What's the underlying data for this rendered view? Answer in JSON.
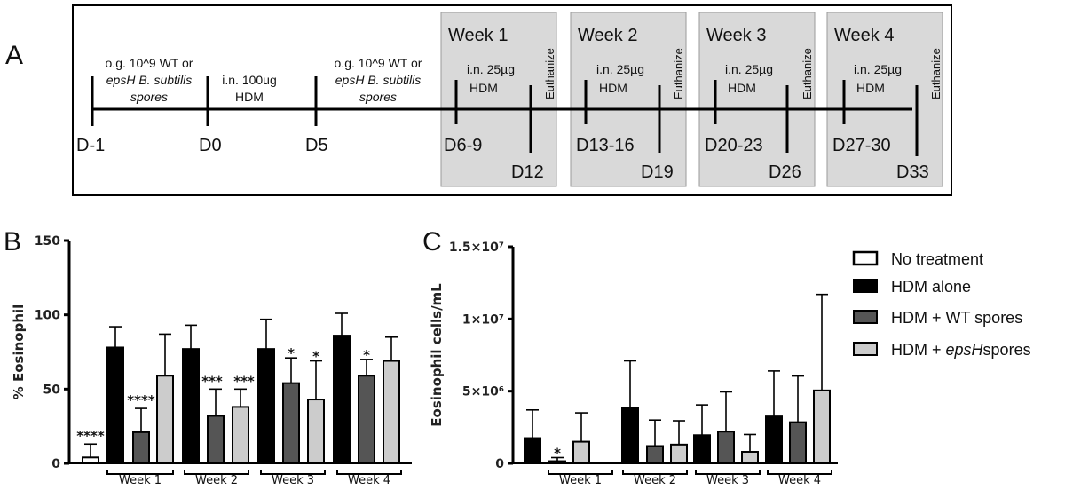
{
  "panel_labels": {
    "a": "A",
    "b": "B",
    "c": "C"
  },
  "timeline": {
    "pre": [
      {
        "line1": "o.g. 10^9 WT or",
        "line2": "epsH B. subtilis",
        "line3": "spores"
      },
      {
        "line1": "i.n. 100ug",
        "line2": "HDM"
      },
      {
        "line1": "o.g. 10^9 WT or",
        "line2": "epsH B. subtilis",
        "line3": "spores"
      }
    ],
    "days": {
      "dm1": "D-1",
      "d0": "D0",
      "d5": "D5"
    },
    "weeks": [
      {
        "title": "Week 1",
        "dose": "i.n. 25µg",
        "agent": "HDM",
        "euth": "Euthanize",
        "range": "D6-9",
        "end": "D12"
      },
      {
        "title": "Week 2",
        "dose": "i.n. 25µg",
        "agent": "HDM",
        "euth": "Euthanize",
        "range": "D13-16",
        "end": "D19"
      },
      {
        "title": "Week 3",
        "dose": "i.n. 25µg",
        "agent": "HDM",
        "euth": "Euthanize",
        "range": "D20-23",
        "end": "D26"
      },
      {
        "title": "Week 4",
        "dose": "i.n. 25µg",
        "agent": "HDM",
        "euth": "Euthanize",
        "range": "D27-30",
        "end": "D33"
      }
    ]
  },
  "legend": {
    "items": [
      {
        "label": "No treatment",
        "color": "#ffffff"
      },
      {
        "label": "HDM alone",
        "color": "#000000"
      },
      {
        "label": "HDM + WT spores",
        "color": "#555555"
      },
      {
        "label_prefix": "HDM + ",
        "label_italic": "epsH",
        "label_suffix": "spores",
        "color": "#cccccc"
      }
    ]
  },
  "chart_data": [
    {
      "type": "bar",
      "panel": "B",
      "ylabel": "% Eosinophil",
      "ylim": [
        0,
        150
      ],
      "yticks": [
        "0",
        "50",
        "100",
        "150"
      ],
      "groups": [
        "Week 1",
        "Week 2",
        "Week 3",
        "Week 4"
      ],
      "bars": [
        {
          "series": "No treatment",
          "value": 4,
          "err": 9,
          "sig": "****",
          "color": "#ffffff"
        },
        {
          "series": "HDM alone",
          "group": "Week 1",
          "value": 78,
          "err": 14,
          "sig": "",
          "color": "#000000"
        },
        {
          "series": "HDM + WT spores",
          "group": "Week 1",
          "value": 21,
          "err": 16,
          "sig": "****",
          "color": "#555555"
        },
        {
          "series": "HDM + epsH spores",
          "group": "Week 1",
          "value": 59,
          "err": 28,
          "sig": "",
          "color": "#cccccc"
        },
        {
          "series": "HDM alone",
          "group": "Week 2",
          "value": 77,
          "err": 16,
          "sig": "",
          "color": "#000000"
        },
        {
          "series": "HDM + WT spores",
          "group": "Week 2",
          "value": 32,
          "err": 18,
          "sig": "***",
          "color": "#555555"
        },
        {
          "series": "HDM + epsH spores",
          "group": "Week 2",
          "value": 38,
          "err": 12,
          "sig": "***",
          "color": "#cccccc"
        },
        {
          "series": "HDM alone",
          "group": "Week 3",
          "value": 77,
          "err": 20,
          "sig": "",
          "color": "#000000"
        },
        {
          "series": "HDM + WT spores",
          "group": "Week 3",
          "value": 54,
          "err": 17,
          "sig": "*",
          "color": "#555555"
        },
        {
          "series": "HDM + epsH spores",
          "group": "Week 3",
          "value": 43,
          "err": 26,
          "sig": "*",
          "color": "#cccccc"
        },
        {
          "series": "HDM alone",
          "group": "Week 4",
          "value": 86,
          "err": 15,
          "sig": "",
          "color": "#000000"
        },
        {
          "series": "HDM + WT spores",
          "group": "Week 4",
          "value": 59,
          "err": 11,
          "sig": "*",
          "color": "#555555"
        },
        {
          "series": "HDM + epsH spores",
          "group": "Week 4",
          "value": 69,
          "err": 16,
          "sig": "",
          "color": "#cccccc"
        }
      ]
    },
    {
      "type": "bar",
      "panel": "C",
      "ylabel": "Eosinophil cells/mL",
      "ylim": [
        0,
        15000000
      ],
      "yticks": [
        "0",
        "5×10⁶",
        "1×10⁷",
        "1.5×10⁷"
      ],
      "groups": [
        "Week 1",
        "Week 2",
        "Week 3",
        "Week 4"
      ],
      "bars": [
        {
          "series": "HDM alone",
          "group": "Week 1",
          "value": 1750000,
          "err": 1950000,
          "sig": "",
          "color": "#000000"
        },
        {
          "series": "HDM + WT spores",
          "group": "Week 1",
          "value": 150000,
          "err": 250000,
          "sig": "*",
          "color": "#555555"
        },
        {
          "series": "HDM + epsH spores",
          "group": "Week 1",
          "value": 1500000,
          "err": 2000000,
          "sig": "",
          "color": "#cccccc"
        },
        {
          "series": "HDM alone",
          "group": "Week 2",
          "value": 3850000,
          "err": 3250000,
          "sig": "",
          "color": "#000000"
        },
        {
          "series": "HDM + WT spores",
          "group": "Week 2",
          "value": 1200000,
          "err": 1800000,
          "sig": "",
          "color": "#555555"
        },
        {
          "series": "HDM + epsH spores",
          "group": "Week 2",
          "value": 1300000,
          "err": 1650000,
          "sig": "",
          "color": "#cccccc"
        },
        {
          "series": "HDM alone",
          "group": "Week 3",
          "value": 1950000,
          "err": 2100000,
          "sig": "",
          "color": "#000000"
        },
        {
          "series": "HDM + WT spores",
          "group": "Week 3",
          "value": 2200000,
          "err": 2750000,
          "sig": "",
          "color": "#555555"
        },
        {
          "series": "HDM + epsH spores",
          "group": "Week 3",
          "value": 800000,
          "err": 1200000,
          "sig": "",
          "color": "#cccccc"
        },
        {
          "series": "HDM alone",
          "group": "Week 4",
          "value": 3250000,
          "err": 3150000,
          "sig": "",
          "color": "#000000"
        },
        {
          "series": "HDM + WT spores",
          "group": "Week 4",
          "value": 2850000,
          "err": 3200000,
          "sig": "",
          "color": "#555555"
        },
        {
          "series": "HDM + epsH spores",
          "group": "Week 4",
          "value": 5050000,
          "err": 6650000,
          "sig": "",
          "color": "#cccccc"
        }
      ]
    }
  ]
}
